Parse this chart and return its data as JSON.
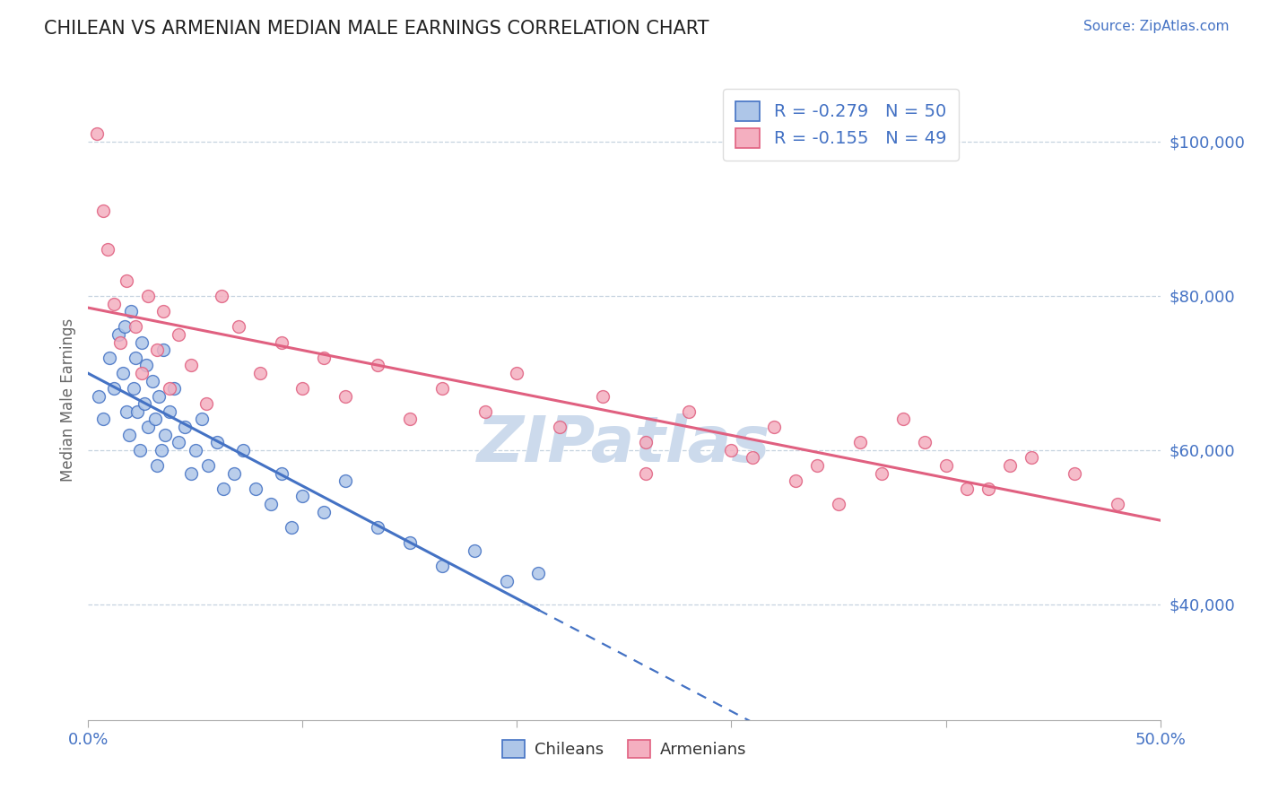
{
  "title": "CHILEAN VS ARMENIAN MEDIAN MALE EARNINGS CORRELATION CHART",
  "source": "Source: ZipAtlas.com",
  "ylabel": "Median Male Earnings",
  "y_ticks": [
    40000,
    60000,
    80000,
    100000
  ],
  "y_tick_labels": [
    "$40,000",
    "$60,000",
    "$80,000",
    "$100,000"
  ],
  "x_min": 0.0,
  "x_max": 0.5,
  "y_min": 25000,
  "y_max": 108000,
  "chilean_color": "#aec6e8",
  "armenian_color": "#f4afc0",
  "chilean_line_color": "#4472c4",
  "armenian_line_color": "#e06080",
  "title_color": "#222222",
  "source_color": "#4472c4",
  "axis_label_color": "#4472c4",
  "watermark_color": "#ccdaec",
  "background_color": "#ffffff",
  "chilean_x": [
    0.005,
    0.007,
    0.01,
    0.012,
    0.014,
    0.016,
    0.017,
    0.018,
    0.019,
    0.02,
    0.021,
    0.022,
    0.023,
    0.024,
    0.025,
    0.026,
    0.027,
    0.028,
    0.03,
    0.031,
    0.032,
    0.033,
    0.034,
    0.035,
    0.036,
    0.038,
    0.04,
    0.042,
    0.045,
    0.048,
    0.05,
    0.053,
    0.056,
    0.06,
    0.063,
    0.068,
    0.072,
    0.078,
    0.085,
    0.09,
    0.095,
    0.1,
    0.11,
    0.12,
    0.135,
    0.15,
    0.165,
    0.18,
    0.195,
    0.21
  ],
  "chilean_y": [
    67000,
    64000,
    72000,
    68000,
    75000,
    70000,
    76000,
    65000,
    62000,
    78000,
    68000,
    72000,
    65000,
    60000,
    74000,
    66000,
    71000,
    63000,
    69000,
    64000,
    58000,
    67000,
    60000,
    73000,
    62000,
    65000,
    68000,
    61000,
    63000,
    57000,
    60000,
    64000,
    58000,
    61000,
    55000,
    57000,
    60000,
    55000,
    53000,
    57000,
    50000,
    54000,
    52000,
    56000,
    50000,
    48000,
    45000,
    47000,
    43000,
    44000
  ],
  "armenian_x": [
    0.004,
    0.007,
    0.009,
    0.012,
    0.015,
    0.018,
    0.022,
    0.025,
    0.028,
    0.032,
    0.035,
    0.038,
    0.042,
    0.048,
    0.055,
    0.062,
    0.07,
    0.08,
    0.09,
    0.1,
    0.11,
    0.12,
    0.135,
    0.15,
    0.165,
    0.185,
    0.2,
    0.22,
    0.24,
    0.26,
    0.28,
    0.3,
    0.32,
    0.34,
    0.36,
    0.38,
    0.4,
    0.42,
    0.44,
    0.46,
    0.48,
    0.26,
    0.31,
    0.33,
    0.35,
    0.37,
    0.39,
    0.41,
    0.43
  ],
  "armenian_y": [
    101000,
    91000,
    86000,
    79000,
    74000,
    82000,
    76000,
    70000,
    80000,
    73000,
    78000,
    68000,
    75000,
    71000,
    66000,
    80000,
    76000,
    70000,
    74000,
    68000,
    72000,
    67000,
    71000,
    64000,
    68000,
    65000,
    70000,
    63000,
    67000,
    61000,
    65000,
    60000,
    63000,
    58000,
    61000,
    64000,
    58000,
    55000,
    59000,
    57000,
    53000,
    57000,
    59000,
    56000,
    53000,
    57000,
    61000,
    55000,
    58000
  ]
}
